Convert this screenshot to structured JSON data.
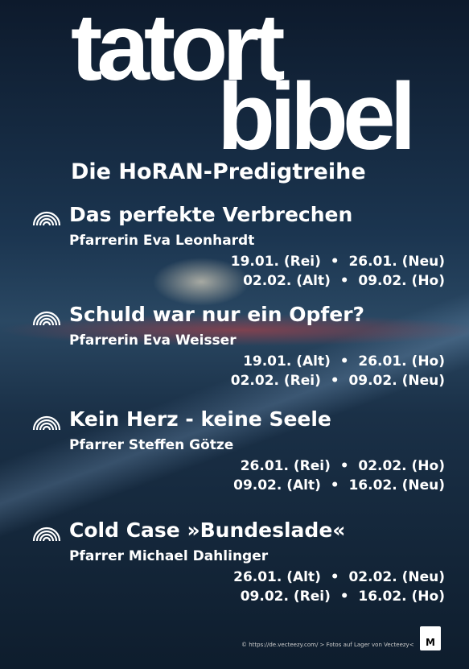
{
  "header": {
    "title_line1": "tatort",
    "title_line2": "bibel",
    "subtitle": "Die HoRAN-Predigtreihe"
  },
  "sermons": [
    {
      "title": "Das perfekte Verbrechen",
      "preacher": "Pfarrerin Eva Leonhardt",
      "dates": [
        "19.01. (Rei)  •  26.01. (Neu)",
        "02.02. (Alt)  •  09.02. (Ho)"
      ]
    },
    {
      "title": "Schuld war nur ein Opfer?",
      "preacher": "Pfarrerin Eva Weisser",
      "dates": [
        "19.01. (Alt)  •  26.01. (Ho)",
        "02.02. (Rei)  •  09.02. (Neu)"
      ]
    },
    {
      "title": "Kein Herz - keine Seele",
      "preacher": "Pfarrer Steffen Götze",
      "dates": [
        "26.01. (Rei)  •  02.02. (Ho)",
        "09.02. (Alt)  •  16.02. (Neu)"
      ]
    },
    {
      "title": "Cold Case »Bundeslade«",
      "preacher": "Pfarrer Michael Dahlinger",
      "dates": [
        "26.01. (Alt)  •  02.02. (Neu)",
        "09.02. (Rei)  •  16.02. (Ho)"
      ]
    }
  ],
  "footer": {
    "credit": "© https://de.vecteezy.com/ > Fotos auf Lager von Vecteezy<",
    "logo": "M"
  }
}
